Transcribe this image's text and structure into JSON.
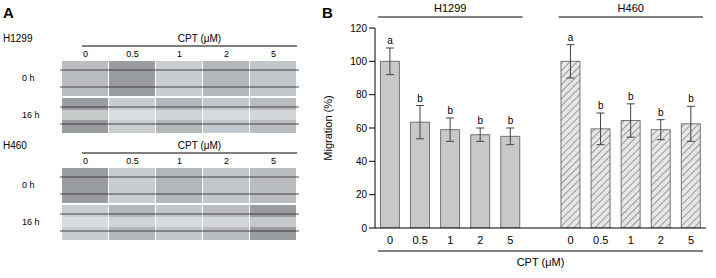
{
  "panel_labels": [
    "A",
    "B"
  ],
  "panel_a": {
    "blocks": [
      {
        "cell_line": "H1299",
        "dose_label": "CPT (μM)",
        "doses": [
          "0",
          "0.5",
          "1",
          "2",
          "5"
        ],
        "times": [
          "0 h",
          "16 h"
        ]
      },
      {
        "cell_line": "H460",
        "dose_label": "CPT (μM)",
        "doses": [
          "0",
          "0.5",
          "1",
          "2",
          "5"
        ],
        "times": [
          "0 h",
          "16 h"
        ]
      }
    ]
  },
  "chart_data": {
    "type": "bar",
    "y_label": "Migration (%)",
    "x_label": "CPT (μM)",
    "categories": [
      "0",
      "0.5",
      "1",
      "2",
      "5",
      null,
      "0",
      "0.5",
      "1",
      "2",
      "5"
    ],
    "series": [
      {
        "name": "H1299",
        "color": "#c8c8c8",
        "values": [
          100,
          63.5,
          59,
          56,
          55,
          null,
          null,
          null,
          null,
          null,
          null
        ],
        "errors": [
          8,
          10,
          7,
          4,
          5,
          null,
          null,
          null,
          null,
          null,
          null
        ],
        "letters": [
          "a",
          "b",
          "b",
          "b",
          "b",
          null,
          null,
          null,
          null,
          null,
          null
        ]
      },
      {
        "name": "H460",
        "color": "#e6e6e6",
        "values": [
          null,
          null,
          null,
          null,
          null,
          null,
          100,
          59.5,
          64.5,
          59,
          62.5
        ],
        "errors": [
          null,
          null,
          null,
          null,
          null,
          null,
          10,
          9.5,
          10,
          6,
          10.5
        ],
        "letters": [
          null,
          null,
          null,
          null,
          null,
          null,
          "a",
          "b",
          "b",
          "b",
          "b"
        ]
      }
    ],
    "ylim": [
      0,
      120
    ],
    "yticks": [
      0,
      20,
      40,
      60,
      80,
      100,
      120
    ]
  }
}
